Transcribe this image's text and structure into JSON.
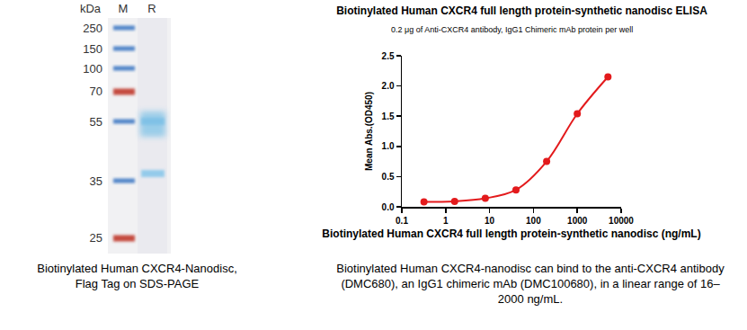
{
  "chart_data": {
    "type": "line",
    "title": "Biotinylated Human CXCR4 full length protein-synthetic nanodisc ELISA",
    "subtitle": "0.2 μg of Anti-CXCR4 antibody, IgG1 Chimeric mAb protein per well",
    "x_label": "Biotinylated Human CXCR4 full length protein-synthetic nanodisc (ng/mL)",
    "y_label": "Mean Abs.(OD450)",
    "caption": "Biotinylated Human CXCR4-nanodisc can bind to the anti-CXCR4 antibody (DMC680), an IgG1 chimeric mAb (DMC100680), in a linear range of 16–2000 ng/mL.",
    "x": [
      0.32,
      1.6,
      8,
      40,
      200,
      1000,
      5000
    ],
    "values": [
      0.08,
      0.09,
      0.14,
      0.28,
      0.75,
      1.54,
      2.15
    ],
    "color": "#e31a1c",
    "marker": "circle",
    "line_style": "solid",
    "log": "x",
    "grid": false,
    "xlim": [
      0.1,
      10000
    ],
    "xticks": [
      0.1,
      1,
      10,
      100,
      1000,
      10000
    ],
    "ylim": [
      0,
      2.5
    ],
    "yticks": [
      {
        "value": 0,
        "label": "0.0"
      },
      0.5,
      {
        "value": 1,
        "label": "1.0"
      },
      1.5,
      {
        "value": 2,
        "label": "2.0"
      },
      2.5
    ]
  },
  "gel": {
    "caption": "Biotinylated Human CXCR4-Nanodisc, Flag Tag on SDS-PAGE",
    "unit_label": "kDa",
    "lanes": [
      "M",
      "R"
    ],
    "markers": [
      250,
      150,
      100,
      70,
      55,
      35,
      25
    ],
    "colors": [
      "#3d78c4",
      "#3d78c4",
      "#3d78c4",
      "#c0392b",
      "#3d78c4",
      "#3d78c4",
      "#c0392b"
    ]
  }
}
